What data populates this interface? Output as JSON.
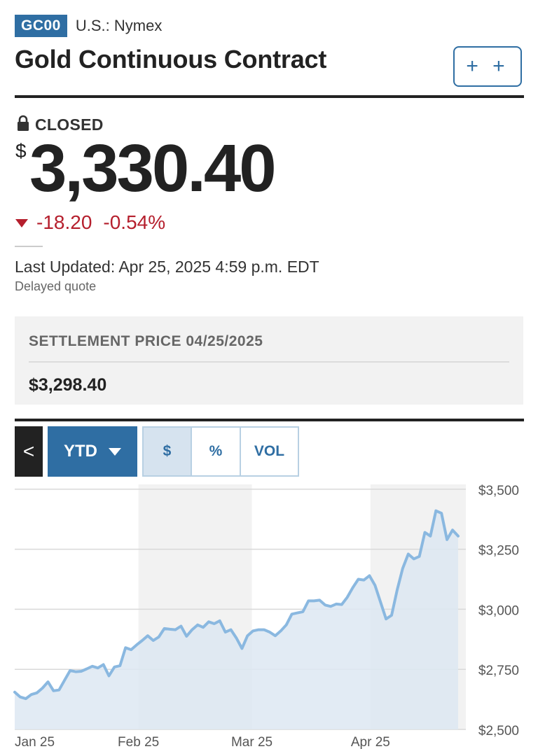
{
  "header": {
    "ticker": "GC00",
    "exchange": "U.S.: Nymex",
    "title": "Gold Continuous Contract",
    "watch_label": "+ +"
  },
  "quote": {
    "status": "CLOSED",
    "currency_symbol": "$",
    "price": "3,330.40",
    "change": "-18.20",
    "change_percent": "-0.54%",
    "last_updated": "Last Updated: Apr 25, 2025 4:59 p.m. EDT",
    "delayed_note": "Delayed quote"
  },
  "settlement": {
    "label": "SETTLEMENT PRICE 04/25/2025",
    "value": "$3,298.40"
  },
  "chart_controls": {
    "back_label": "<",
    "range_label": "YTD",
    "modes": [
      "$",
      "%",
      "VOL"
    ],
    "active_mode": "$"
  },
  "colors": {
    "brand_blue": "#2f6ea3",
    "negative": "#b51f2d",
    "line": "#8ab8e0",
    "area": "#dde8f2"
  },
  "chart_data": {
    "type": "area",
    "ylim": [
      2500,
      3520
    ],
    "y_ticks": [
      {
        "value": 3500,
        "label": "$3,500"
      },
      {
        "value": 3250,
        "label": "$3,250"
      },
      {
        "value": 3000,
        "label": "$3,000"
      },
      {
        "value": 2750,
        "label": "$2,750"
      },
      {
        "value": 2500,
        "label": "$2,500"
      }
    ],
    "x_ticks": [
      {
        "value": 0,
        "label": "Jan 25"
      },
      {
        "value": 24,
        "label": "Feb 25"
      },
      {
        "value": 46,
        "label": "Mar 25"
      },
      {
        "value": 69,
        "label": "Apr 25"
      }
    ],
    "shaded_bands": [
      [
        24,
        46
      ],
      [
        69,
        87.5
      ]
    ],
    "x_max": 87.5,
    "values": [
      2655,
      2635,
      2628,
      2645,
      2652,
      2672,
      2698,
      2661,
      2664,
      2705,
      2745,
      2740,
      2742,
      2752,
      2763,
      2756,
      2770,
      2723,
      2760,
      2765,
      2840,
      2832,
      2852,
      2870,
      2890,
      2870,
      2885,
      2920,
      2917,
      2915,
      2930,
      2888,
      2915,
      2935,
      2925,
      2948,
      2940,
      2952,
      2905,
      2915,
      2880,
      2837,
      2890,
      2910,
      2915,
      2915,
      2905,
      2890,
      2910,
      2935,
      2980,
      2985,
      2990,
      3035,
      3035,
      3038,
      3018,
      3012,
      3022,
      3020,
      3050,
      3090,
      3125,
      3122,
      3140,
      3100,
      3030,
      2960,
      2975,
      3080,
      3170,
      3230,
      3210,
      3220,
      3320,
      3305,
      3410,
      3400,
      3290,
      3330,
      3305
    ]
  }
}
